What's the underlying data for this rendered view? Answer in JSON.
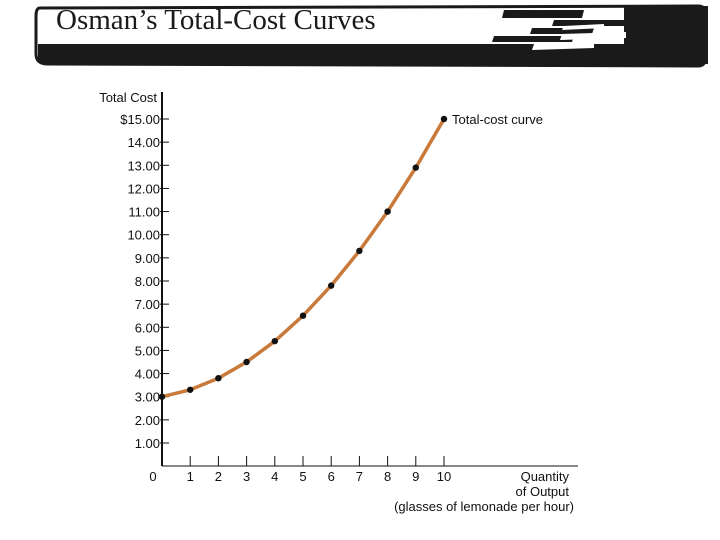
{
  "slide": {
    "title": "Osman’s Total-Cost Curves"
  },
  "colors": {
    "curve": "#c97a3a",
    "point": "#111111",
    "axis": "#111111",
    "banner": "#1a1a1a"
  },
  "chart_data": {
    "type": "line",
    "title": "",
    "ylabel": "Total Cost",
    "xlabel": [
      "Quantity",
      "of Output",
      "(glasses of lemonade per hour)"
    ],
    "x_ticks": [
      "0",
      "1",
      "2",
      "3",
      "4",
      "5",
      "6",
      "7",
      "8",
      "9",
      "10"
    ],
    "y_ticks": [
      "1.00",
      "2.00",
      "3.00",
      "4.00",
      "5.00",
      "6.00",
      "7.00",
      "8.00",
      "9.00",
      "10.00",
      "11.00",
      "12.00",
      "13.00",
      "14.00",
      "$15.00"
    ],
    "xlim": [
      0,
      10
    ],
    "ylim": [
      0,
      15
    ],
    "grid": false,
    "series": [
      {
        "name": "Total-cost curve",
        "x": [
          0,
          1,
          2,
          3,
          4,
          5,
          6,
          7,
          8,
          9,
          10
        ],
        "y": [
          3.0,
          3.3,
          3.8,
          4.5,
          5.4,
          6.5,
          7.8,
          9.3,
          11.0,
          12.9,
          15.0
        ]
      }
    ]
  }
}
